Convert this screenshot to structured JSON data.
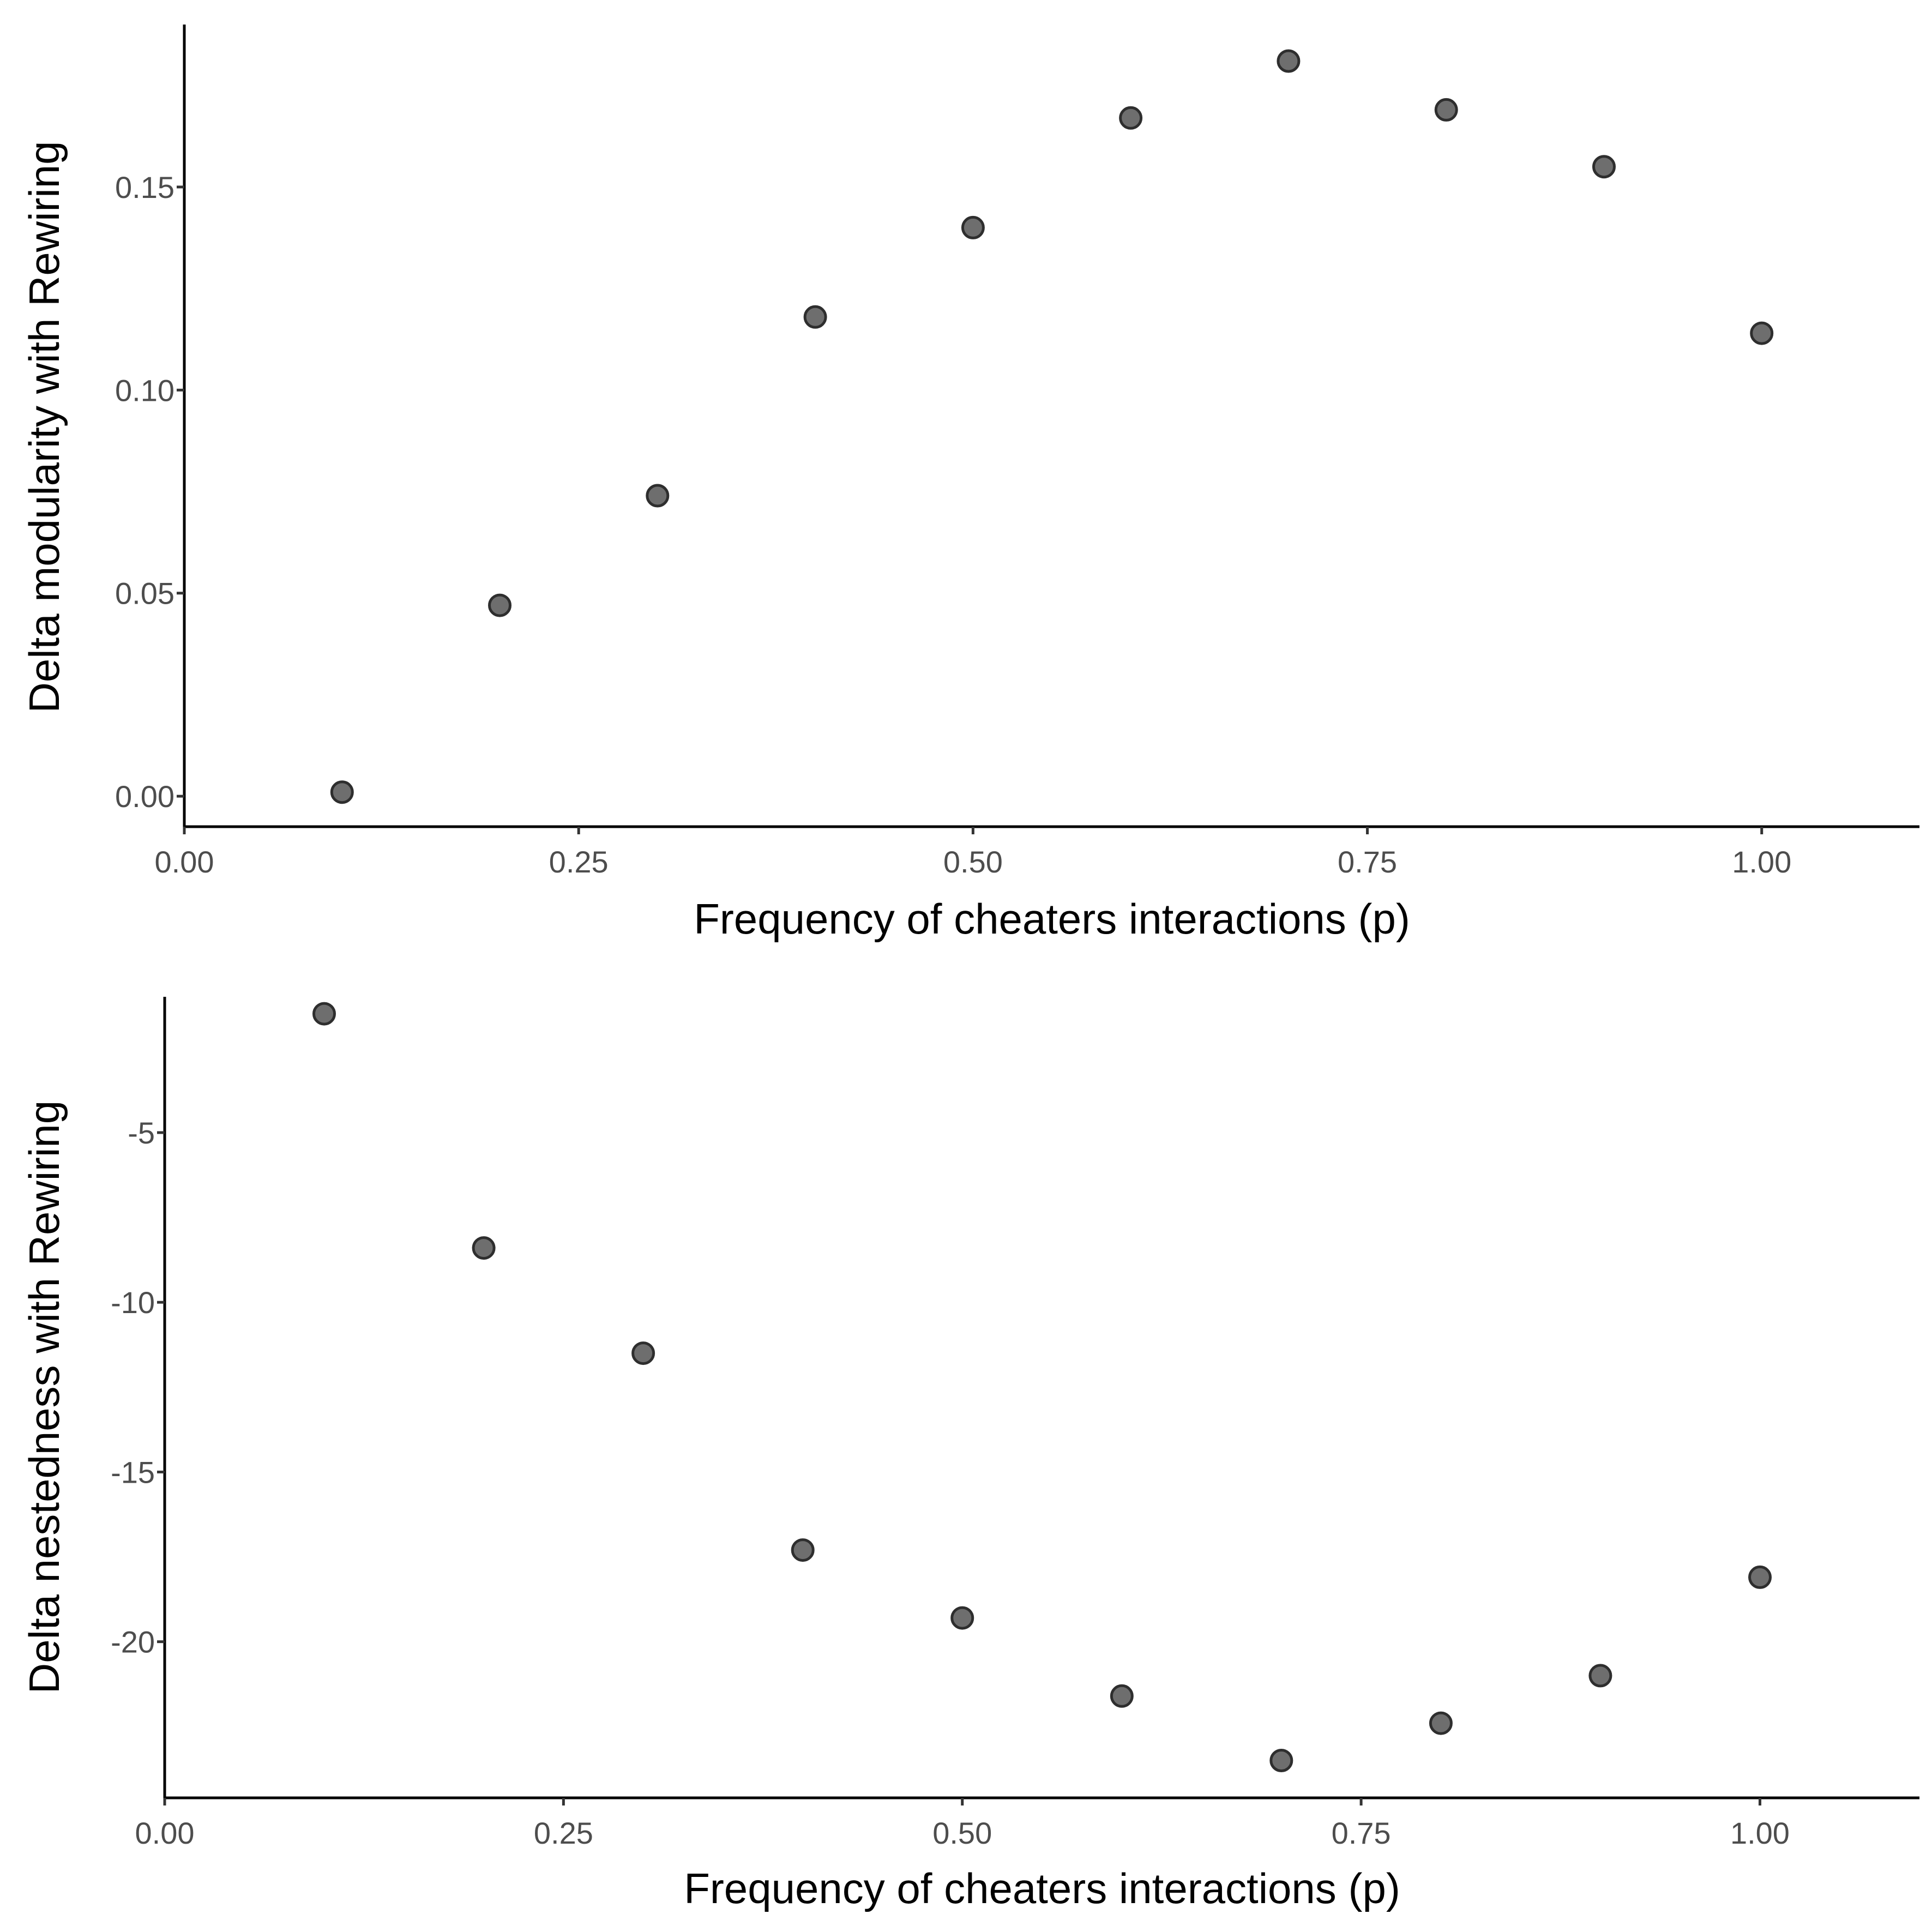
{
  "chart_data": [
    {
      "type": "scatter",
      "xlabel": "Frequency of cheaters interactions (p)",
      "ylabel": "Delta modularity with Rewiring",
      "xlim": [
        0,
        1.1
      ],
      "ylim": [
        -0.0075,
        0.19
      ],
      "xticks": [
        "0.00",
        "0.25",
        "0.50",
        "0.75",
        "1.00"
      ],
      "yticks": [
        "0.00",
        "0.05",
        "0.10",
        "0.15"
      ],
      "x": [
        0.1,
        0.2,
        0.3,
        0.4,
        0.5,
        0.6,
        0.7,
        0.8,
        0.9,
        1.0
      ],
      "y": [
        0.001,
        0.047,
        0.074,
        0.118,
        0.14,
        0.167,
        0.181,
        0.169,
        0.155,
        0.114
      ],
      "point_color": "#6e6e6e",
      "grid": false,
      "legend": "none"
    },
    {
      "type": "scatter",
      "xlabel": "Frequency of cheaters interactions (p)",
      "ylabel": "Delta nestedness with Rewiring",
      "xlim": [
        0,
        1.1
      ],
      "ylim": [
        -24.6,
        -1.0
      ],
      "xticks": [
        "0.00",
        "0.25",
        "0.50",
        "0.75",
        "1.00"
      ],
      "yticks": [
        "-5",
        "-10",
        "-15",
        "-20"
      ],
      "x": [
        0.1,
        0.2,
        0.3,
        0.4,
        0.5,
        0.6,
        0.7,
        0.8,
        0.9,
        1.0
      ],
      "y": [
        -1.5,
        -8.4,
        -11.5,
        -17.3,
        -19.3,
        -21.6,
        -23.5,
        -22.4,
        -21.0,
        -18.1
      ],
      "point_color": "#6e6e6e",
      "grid": false,
      "legend": "none"
    }
  ]
}
